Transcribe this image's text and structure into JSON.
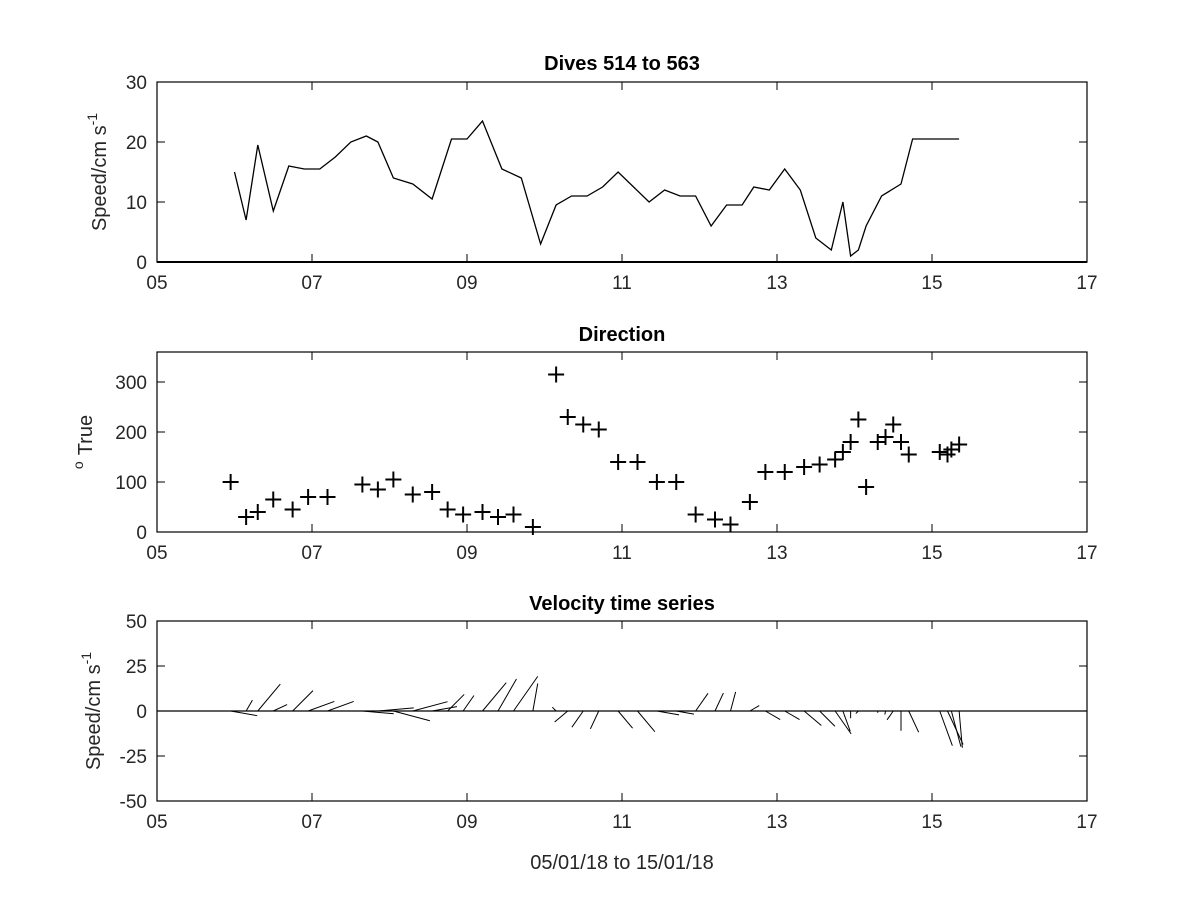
{
  "chart_data": [
    {
      "type": "line",
      "title": "Dives 514 to 563",
      "ylabel": "Speed/cm s",
      "ylabel_superscript": "-1",
      "xlim": [
        5,
        17
      ],
      "ylim": [
        0,
        30
      ],
      "x_ticks": [
        "05",
        "07",
        "09",
        "11",
        "13",
        "15",
        "17"
      ],
      "y_ticks": [
        "0",
        "10",
        "20",
        "30"
      ],
      "series": [
        {
          "x": [
            6.0,
            6.15,
            6.3,
            6.5,
            6.7,
            6.9,
            7.1,
            7.3,
            7.5,
            7.7,
            7.85,
            8.05,
            8.3,
            8.55,
            8.8,
            9.0,
            9.2,
            9.45,
            9.7,
            9.95,
            10.15,
            10.35,
            10.55,
            10.75,
            10.95,
            11.15,
            11.35,
            11.55,
            11.75,
            11.95,
            12.15,
            12.35,
            12.55,
            12.7,
            12.9,
            13.1,
            13.3,
            13.5,
            13.7,
            13.85,
            13.95,
            14.05,
            14.15,
            14.35,
            14.6,
            14.75,
            14.95,
            15.15,
            15.35
          ],
          "y": [
            15,
            7,
            19.5,
            8.5,
            16,
            15.5,
            15.5,
            17.5,
            20,
            21,
            20,
            14,
            13,
            10.5,
            20.5,
            20.5,
            23.5,
            15.5,
            14,
            3,
            9.5,
            11,
            11,
            12.5,
            15,
            12.5,
            10,
            12,
            11,
            11,
            6,
            9.5,
            9.5,
            12.5,
            12,
            15.5,
            12,
            4,
            2,
            10,
            1,
            2,
            6,
            11,
            13,
            20.5,
            20.5,
            20.5,
            20.5
          ]
        }
      ]
    },
    {
      "type": "scatter",
      "title": "Direction",
      "ylabel": "True",
      "ylabel_superscript": "o",
      "xlim": [
        5,
        17
      ],
      "ylim": [
        0,
        360
      ],
      "x_ticks": [
        "05",
        "07",
        "09",
        "11",
        "13",
        "15",
        "17"
      ],
      "y_ticks": [
        "0",
        "100",
        "200",
        "300"
      ],
      "marker": "+",
      "series": [
        {
          "x": [
            5.95,
            6.15,
            6.3,
            6.5,
            6.75,
            6.95,
            7.2,
            7.65,
            7.85,
            8.05,
            8.3,
            8.55,
            8.75,
            8.95,
            9.2,
            9.4,
            9.6,
            9.85,
            10.15,
            10.3,
            10.5,
            10.7,
            10.95,
            11.2,
            11.45,
            11.7,
            11.95,
            12.2,
            12.4,
            12.65,
            12.85,
            13.1,
            13.35,
            13.55,
            13.75,
            13.85,
            13.95,
            14.05,
            14.15,
            14.3,
            14.4,
            14.5,
            14.6,
            14.7,
            15.1,
            15.2,
            15.25,
            15.35
          ],
          "y": [
            100,
            30,
            40,
            65,
            45,
            70,
            70,
            95,
            85,
            105,
            75,
            80,
            45,
            35,
            40,
            30,
            35,
            10,
            315,
            230,
            215,
            205,
            140,
            140,
            100,
            100,
            35,
            25,
            15,
            60,
            120,
            120,
            130,
            135,
            145,
            160,
            180,
            225,
            90,
            180,
            190,
            215,
            180,
            155,
            160,
            155,
            165,
            175
          ]
        }
      ]
    },
    {
      "type": "quiver",
      "title": "Velocity time series",
      "ylabel": "Speed/cm s",
      "ylabel_superscript": "-1",
      "xlabel": "05/01/18 to 15/01/18",
      "xlim": [
        5,
        17
      ],
      "ylim": [
        -50,
        50
      ],
      "x_ticks": [
        "05",
        "07",
        "09",
        "11",
        "13",
        "15",
        "17"
      ],
      "y_ticks": [
        "-50",
        "-25",
        "0",
        "25",
        "50"
      ],
      "vectors": {
        "x": [
          5.95,
          6.15,
          6.3,
          6.5,
          6.75,
          6.95,
          7.2,
          7.65,
          7.85,
          8.05,
          8.3,
          8.55,
          8.75,
          8.95,
          9.2,
          9.4,
          9.6,
          9.85,
          10.15,
          10.3,
          10.5,
          10.7,
          10.95,
          11.2,
          11.45,
          11.7,
          11.95,
          12.2,
          12.4,
          12.65,
          12.85,
          13.1,
          13.35,
          13.55,
          13.75,
          13.85,
          13.95,
          14.05,
          14.15,
          14.3,
          14.4,
          14.5,
          14.6,
          14.7,
          15.1,
          15.2,
          15.25,
          15.35
        ],
        "speed": [
          15,
          7,
          19.5,
          8.5,
          16,
          15.5,
          15.5,
          17.5,
          20,
          21,
          20,
          14,
          13,
          10.5,
          20.5,
          20.5,
          23.5,
          15.5,
          3,
          9.5,
          11,
          11,
          12.5,
          15,
          12.5,
          10,
          12,
          11,
          11,
          6,
          9.5,
          9.5,
          12.5,
          12,
          15.5,
          12,
          4,
          2,
          10,
          1,
          2,
          6,
          11,
          13,
          20.5,
          20.5,
          20.5,
          20.5
        ],
        "direction_deg_true": [
          100,
          30,
          40,
          65,
          45,
          70,
          70,
          95,
          85,
          105,
          75,
          80,
          45,
          35,
          40,
          30,
          35,
          10,
          315,
          230,
          215,
          205,
          140,
          140,
          100,
          100,
          35,
          25,
          15,
          60,
          120,
          120,
          130,
          135,
          145,
          160,
          180,
          225,
          90,
          180,
          190,
          215,
          180,
          155,
          160,
          155,
          165,
          175
        ]
      }
    }
  ]
}
